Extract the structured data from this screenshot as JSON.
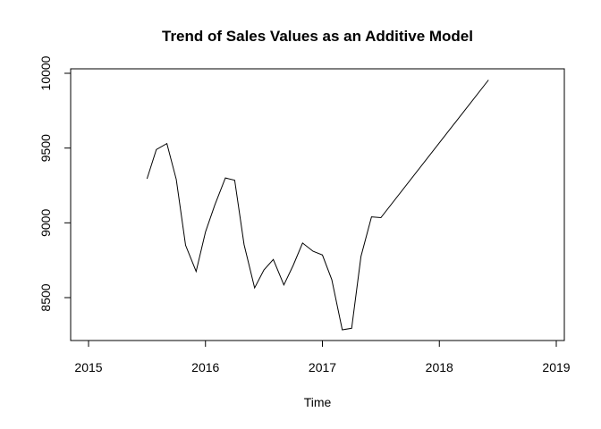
{
  "chart_data": {
    "type": "line",
    "title": "Trend of Sales Values as an Additive Model",
    "xlabel": "Time",
    "ylabel": "",
    "xlim": [
      2015,
      2019
    ],
    "ylim": [
      8280,
      10000
    ],
    "x_ticks": [
      2015,
      2016,
      2017,
      2018,
      2019
    ],
    "x_tick_labels": [
      "2015",
      "2016",
      "2017",
      "2018",
      "2019"
    ],
    "y_ticks": [
      8500,
      9000,
      9500,
      10000
    ],
    "y_tick_labels": [
      "8500",
      "9000",
      "9500",
      "10000"
    ],
    "grid": false,
    "series": [
      {
        "x": [
          2015.5,
          2015.58,
          2015.67,
          2015.75,
          2015.83,
          2015.92,
          2016.0,
          2016.08,
          2016.17,
          2016.25,
          2016.33,
          2016.42,
          2016.5,
          2016.58,
          2016.67,
          2016.75,
          2016.83,
          2016.92,
          2017.0,
          2017.08,
          2017.17,
          2017.25,
          2017.33,
          2017.42,
          2017.5,
          2018.42
        ],
        "y": [
          9295,
          9490,
          9530,
          9290,
          8850,
          8675,
          8940,
          9120,
          9300,
          9285,
          8855,
          8565,
          8685,
          8755,
          8585,
          8715,
          8865,
          8810,
          8785,
          8620,
          8285,
          8295,
          8775,
          9040,
          9035,
          9955
        ]
      }
    ]
  }
}
